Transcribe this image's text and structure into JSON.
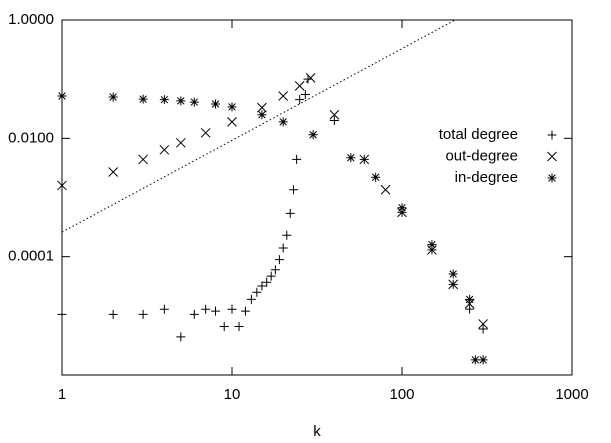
{
  "chart_data": {
    "type": "scatter",
    "x_label": "k",
    "xlog": true,
    "ylog": true,
    "xlim": [
      1,
      1000
    ],
    "ylim": [
      1e-06,
      1
    ],
    "xticks": [
      1,
      10,
      100,
      1000
    ],
    "yticks": [
      {
        "value": 1,
        "label": "1.0000"
      },
      {
        "value": 0.01,
        "label": "0.0100"
      },
      {
        "value": 0.0001,
        "label": "0.0001"
      }
    ],
    "legend": "right",
    "series": [
      {
        "name": "total degree",
        "marker": "plus",
        "color": "#000000",
        "x": [
          1,
          2,
          3,
          4,
          5,
          6,
          7,
          8,
          9,
          10,
          11,
          12,
          13,
          14,
          15,
          16,
          17,
          18,
          19,
          20,
          21,
          22,
          23,
          24,
          25,
          27,
          28,
          40,
          60,
          100,
          150,
          200,
          250,
          300
        ],
        "values": [
          1.06e-05,
          1.06e-05,
          1.06e-05,
          1.29e-05,
          4.4e-06,
          1.06e-05,
          1.29e-05,
          1.2e-05,
          6.6e-06,
          1.29e-05,
          6.6e-06,
          1.2e-05,
          1.9e-05,
          2.5e-05,
          3.2e-05,
          3.7e-05,
          4.7e-05,
          6e-05,
          8.9e-05,
          0.00014,
          0.00023,
          0.00054,
          0.00135,
          0.0044,
          0.045,
          0.055,
          0.1,
          0.02,
          0.0044,
          0.00056,
          0.00013,
          3.4e-05,
          1.3e-05,
          6e-06
        ]
      },
      {
        "name": "out-degree",
        "marker": "cross",
        "color": "#000000",
        "x": [
          1,
          2,
          3,
          4,
          5,
          7,
          10,
          15,
          20,
          25,
          29,
          40,
          60,
          80,
          100,
          150,
          200,
          250,
          300
        ],
        "values": [
          0.0016,
          0.0027,
          0.0044,
          0.0064,
          0.0084,
          0.0124,
          0.019,
          0.033,
          0.052,
          0.077,
          0.105,
          0.025,
          0.0044,
          0.00135,
          0.00056,
          0.00013,
          3.4e-05,
          1.6e-05,
          7.3e-06
        ]
      },
      {
        "name": "in-degree",
        "marker": "star",
        "color": "#000000",
        "x": [
          1,
          2,
          3,
          4,
          5,
          6,
          8,
          10,
          15,
          20,
          30,
          50,
          70,
          100,
          150,
          200,
          250,
          270,
          300
        ],
        "values": [
          0.052,
          0.05,
          0.046,
          0.045,
          0.043,
          0.041,
          0.038,
          0.034,
          0.025,
          0.019,
          0.0115,
          0.0047,
          0.0022,
          0.00067,
          0.00016,
          5.1e-05,
          1.9e-05,
          1.8e-06,
          1.8e-06
        ]
      },
      {
        "marker": "dotted-line",
        "color": "#000000",
        "x": [
          1,
          205
        ],
        "values": [
          0.00026,
          1
        ]
      }
    ]
  }
}
